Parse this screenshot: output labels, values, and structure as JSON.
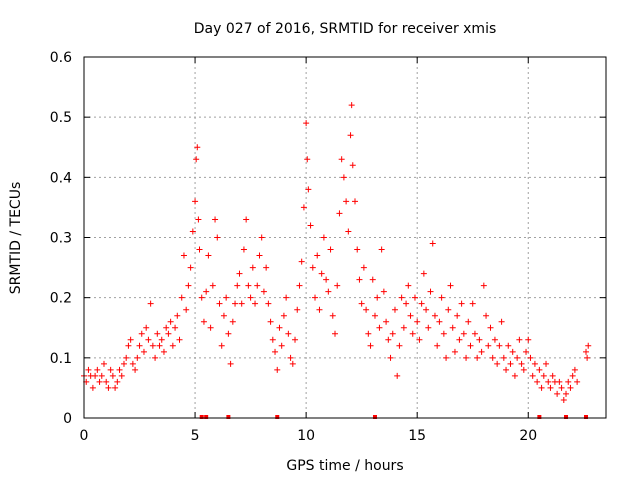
{
  "chart_data": {
    "type": "scatter",
    "title": "Day 027 of 2016, SRMTID for receiver xmis",
    "xlabel": "GPS time / hours",
    "ylabel": "SRMTID / TECUs",
    "xlim": [
      0,
      23.5
    ],
    "ylim": [
      0,
      0.6
    ],
    "xticks": [
      0,
      5,
      10,
      15,
      20
    ],
    "yticks": [
      0,
      0.1,
      0.2,
      0.3,
      0.4,
      0.5,
      0.6
    ],
    "xtick_labels": [
      "0",
      "5",
      "10",
      "15",
      "20"
    ],
    "ytick_labels": [
      "0",
      "0.1",
      "0.2",
      "0.3",
      "0.4",
      "0.5",
      "0.6"
    ],
    "grid": true,
    "marker": "+",
    "color": "#ff0000",
    "series": [
      {
        "name": "SRMTID",
        "points": [
          [
            0.0,
            0.07
          ],
          [
            0.1,
            0.06
          ],
          [
            0.2,
            0.08
          ],
          [
            0.3,
            0.07
          ],
          [
            0.4,
            0.05
          ],
          [
            0.5,
            0.07
          ],
          [
            0.6,
            0.08
          ],
          [
            0.7,
            0.06
          ],
          [
            0.8,
            0.07
          ],
          [
            0.9,
            0.09
          ],
          [
            1.0,
            0.06
          ],
          [
            1.1,
            0.05
          ],
          [
            1.2,
            0.08
          ],
          [
            1.3,
            0.07
          ],
          [
            1.4,
            0.05
          ],
          [
            1.5,
            0.06
          ],
          [
            1.6,
            0.08
          ],
          [
            1.7,
            0.07
          ],
          [
            1.8,
            0.09
          ],
          [
            1.9,
            0.1
          ],
          [
            2.0,
            0.12
          ],
          [
            2.1,
            0.13
          ],
          [
            2.2,
            0.09
          ],
          [
            2.3,
            0.08
          ],
          [
            2.4,
            0.1
          ],
          [
            2.5,
            0.12
          ],
          [
            2.6,
            0.14
          ],
          [
            2.7,
            0.11
          ],
          [
            2.8,
            0.15
          ],
          [
            2.9,
            0.13
          ],
          [
            3.0,
            0.19
          ],
          [
            3.1,
            0.12
          ],
          [
            3.2,
            0.1
          ],
          [
            3.3,
            0.14
          ],
          [
            3.4,
            0.12
          ],
          [
            3.5,
            0.13
          ],
          [
            3.6,
            0.11
          ],
          [
            3.7,
            0.15
          ],
          [
            3.8,
            0.14
          ],
          [
            3.9,
            0.16
          ],
          [
            4.0,
            0.12
          ],
          [
            4.1,
            0.15
          ],
          [
            4.2,
            0.17
          ],
          [
            4.3,
            0.13
          ],
          [
            4.4,
            0.2
          ],
          [
            4.5,
            0.27
          ],
          [
            4.6,
            0.18
          ],
          [
            4.7,
            0.22
          ],
          [
            4.8,
            0.25
          ],
          [
            4.9,
            0.31
          ],
          [
            5.0,
            0.36
          ],
          [
            5.05,
            0.43
          ],
          [
            5.1,
            0.45
          ],
          [
            5.15,
            0.33
          ],
          [
            5.2,
            0.28
          ],
          [
            5.3,
            0.2
          ],
          [
            5.4,
            0.16
          ],
          [
            5.5,
            0.21
          ],
          [
            5.6,
            0.27
          ],
          [
            5.7,
            0.15
          ],
          [
            5.8,
            0.22
          ],
          [
            5.9,
            0.33
          ],
          [
            6.0,
            0.3
          ],
          [
            6.1,
            0.19
          ],
          [
            6.2,
            0.12
          ],
          [
            6.3,
            0.17
          ],
          [
            6.4,
            0.2
          ],
          [
            6.5,
            0.14
          ],
          [
            6.6,
            0.09
          ],
          [
            6.7,
            0.16
          ],
          [
            6.8,
            0.19
          ],
          [
            6.9,
            0.22
          ],
          [
            7.0,
            0.24
          ],
          [
            7.1,
            0.19
          ],
          [
            7.2,
            0.28
          ],
          [
            7.3,
            0.33
          ],
          [
            7.4,
            0.22
          ],
          [
            7.5,
            0.2
          ],
          [
            7.6,
            0.25
          ],
          [
            7.7,
            0.19
          ],
          [
            7.8,
            0.22
          ],
          [
            7.9,
            0.27
          ],
          [
            8.0,
            0.3
          ],
          [
            8.1,
            0.21
          ],
          [
            8.2,
            0.25
          ],
          [
            8.3,
            0.19
          ],
          [
            8.4,
            0.16
          ],
          [
            8.5,
            0.13
          ],
          [
            8.6,
            0.11
          ],
          [
            8.7,
            0.08
          ],
          [
            8.8,
            0.15
          ],
          [
            8.9,
            0.12
          ],
          [
            9.0,
            0.17
          ],
          [
            9.1,
            0.2
          ],
          [
            9.2,
            0.14
          ],
          [
            9.3,
            0.1
          ],
          [
            9.4,
            0.09
          ],
          [
            9.5,
            0.13
          ],
          [
            9.6,
            0.18
          ],
          [
            9.7,
            0.22
          ],
          [
            9.8,
            0.26
          ],
          [
            9.9,
            0.35
          ],
          [
            10.0,
            0.49
          ],
          [
            10.05,
            0.43
          ],
          [
            10.1,
            0.38
          ],
          [
            10.2,
            0.32
          ],
          [
            10.3,
            0.25
          ],
          [
            10.4,
            0.2
          ],
          [
            10.5,
            0.27
          ],
          [
            10.6,
            0.18
          ],
          [
            10.7,
            0.24
          ],
          [
            10.8,
            0.3
          ],
          [
            10.9,
            0.23
          ],
          [
            11.0,
            0.21
          ],
          [
            11.1,
            0.28
          ],
          [
            11.2,
            0.17
          ],
          [
            11.3,
            0.14
          ],
          [
            11.4,
            0.22
          ],
          [
            11.5,
            0.34
          ],
          [
            11.6,
            0.43
          ],
          [
            11.7,
            0.4
          ],
          [
            11.8,
            0.36
          ],
          [
            11.9,
            0.31
          ],
          [
            12.0,
            0.47
          ],
          [
            12.05,
            0.52
          ],
          [
            12.1,
            0.42
          ],
          [
            12.2,
            0.36
          ],
          [
            12.3,
            0.28
          ],
          [
            12.4,
            0.23
          ],
          [
            12.5,
            0.19
          ],
          [
            12.6,
            0.25
          ],
          [
            12.7,
            0.18
          ],
          [
            12.8,
            0.14
          ],
          [
            12.9,
            0.12
          ],
          [
            13.0,
            0.23
          ],
          [
            13.1,
            0.17
          ],
          [
            13.2,
            0.2
          ],
          [
            13.3,
            0.15
          ],
          [
            13.4,
            0.28
          ],
          [
            13.5,
            0.21
          ],
          [
            13.6,
            0.16
          ],
          [
            13.7,
            0.13
          ],
          [
            13.8,
            0.1
          ],
          [
            13.9,
            0.14
          ],
          [
            14.0,
            0.18
          ],
          [
            14.1,
            0.07
          ],
          [
            14.2,
            0.12
          ],
          [
            14.3,
            0.2
          ],
          [
            14.4,
            0.15
          ],
          [
            14.5,
            0.19
          ],
          [
            14.6,
            0.22
          ],
          [
            14.7,
            0.17
          ],
          [
            14.8,
            0.14
          ],
          [
            14.9,
            0.2
          ],
          [
            15.0,
            0.16
          ],
          [
            15.1,
            0.13
          ],
          [
            15.2,
            0.19
          ],
          [
            15.3,
            0.24
          ],
          [
            15.4,
            0.18
          ],
          [
            15.5,
            0.15
          ],
          [
            15.6,
            0.21
          ],
          [
            15.7,
            0.29
          ],
          [
            15.8,
            0.17
          ],
          [
            15.9,
            0.12
          ],
          [
            16.0,
            0.16
          ],
          [
            16.1,
            0.2
          ],
          [
            16.2,
            0.14
          ],
          [
            16.3,
            0.1
          ],
          [
            16.4,
            0.18
          ],
          [
            16.5,
            0.22
          ],
          [
            16.6,
            0.15
          ],
          [
            16.7,
            0.11
          ],
          [
            16.8,
            0.17
          ],
          [
            16.9,
            0.13
          ],
          [
            17.0,
            0.19
          ],
          [
            17.1,
            0.14
          ],
          [
            17.2,
            0.1
          ],
          [
            17.3,
            0.16
          ],
          [
            17.4,
            0.12
          ],
          [
            17.5,
            0.19
          ],
          [
            17.6,
            0.14
          ],
          [
            17.7,
            0.1
          ],
          [
            17.8,
            0.13
          ],
          [
            17.9,
            0.11
          ],
          [
            18.0,
            0.22
          ],
          [
            18.1,
            0.17
          ],
          [
            18.2,
            0.12
          ],
          [
            18.3,
            0.15
          ],
          [
            18.4,
            0.1
          ],
          [
            18.5,
            0.13
          ],
          [
            18.6,
            0.09
          ],
          [
            18.7,
            0.12
          ],
          [
            18.8,
            0.16
          ],
          [
            18.9,
            0.1
          ],
          [
            19.0,
            0.08
          ],
          [
            19.1,
            0.12
          ],
          [
            19.2,
            0.09
          ],
          [
            19.3,
            0.11
          ],
          [
            19.4,
            0.07
          ],
          [
            19.5,
            0.1
          ],
          [
            19.6,
            0.13
          ],
          [
            19.7,
            0.09
          ],
          [
            19.8,
            0.08
          ],
          [
            19.9,
            0.11
          ],
          [
            20.0,
            0.13
          ],
          [
            20.1,
            0.1
          ],
          [
            20.2,
            0.07
          ],
          [
            20.3,
            0.09
          ],
          [
            20.4,
            0.06
          ],
          [
            20.5,
            0.08
          ],
          [
            20.6,
            0.05
          ],
          [
            20.7,
            0.07
          ],
          [
            20.8,
            0.09
          ],
          [
            20.9,
            0.06
          ],
          [
            21.0,
            0.05
          ],
          [
            21.1,
            0.07
          ],
          [
            21.2,
            0.06
          ],
          [
            21.3,
            0.04
          ],
          [
            21.4,
            0.06
          ],
          [
            21.5,
            0.05
          ],
          [
            21.6,
            0.03
          ],
          [
            21.7,
            0.04
          ],
          [
            21.8,
            0.06
          ],
          [
            21.9,
            0.05
          ],
          [
            22.0,
            0.07
          ],
          [
            22.1,
            0.08
          ],
          [
            22.2,
            0.06
          ],
          [
            22.6,
            0.11
          ],
          [
            22.65,
            0.1
          ],
          [
            22.7,
            0.12
          ]
        ]
      }
    ],
    "zero_markers": [
      5.3,
      5.5,
      6.5,
      8.7,
      13.1,
      20.5,
      21.7,
      22.6
    ]
  }
}
